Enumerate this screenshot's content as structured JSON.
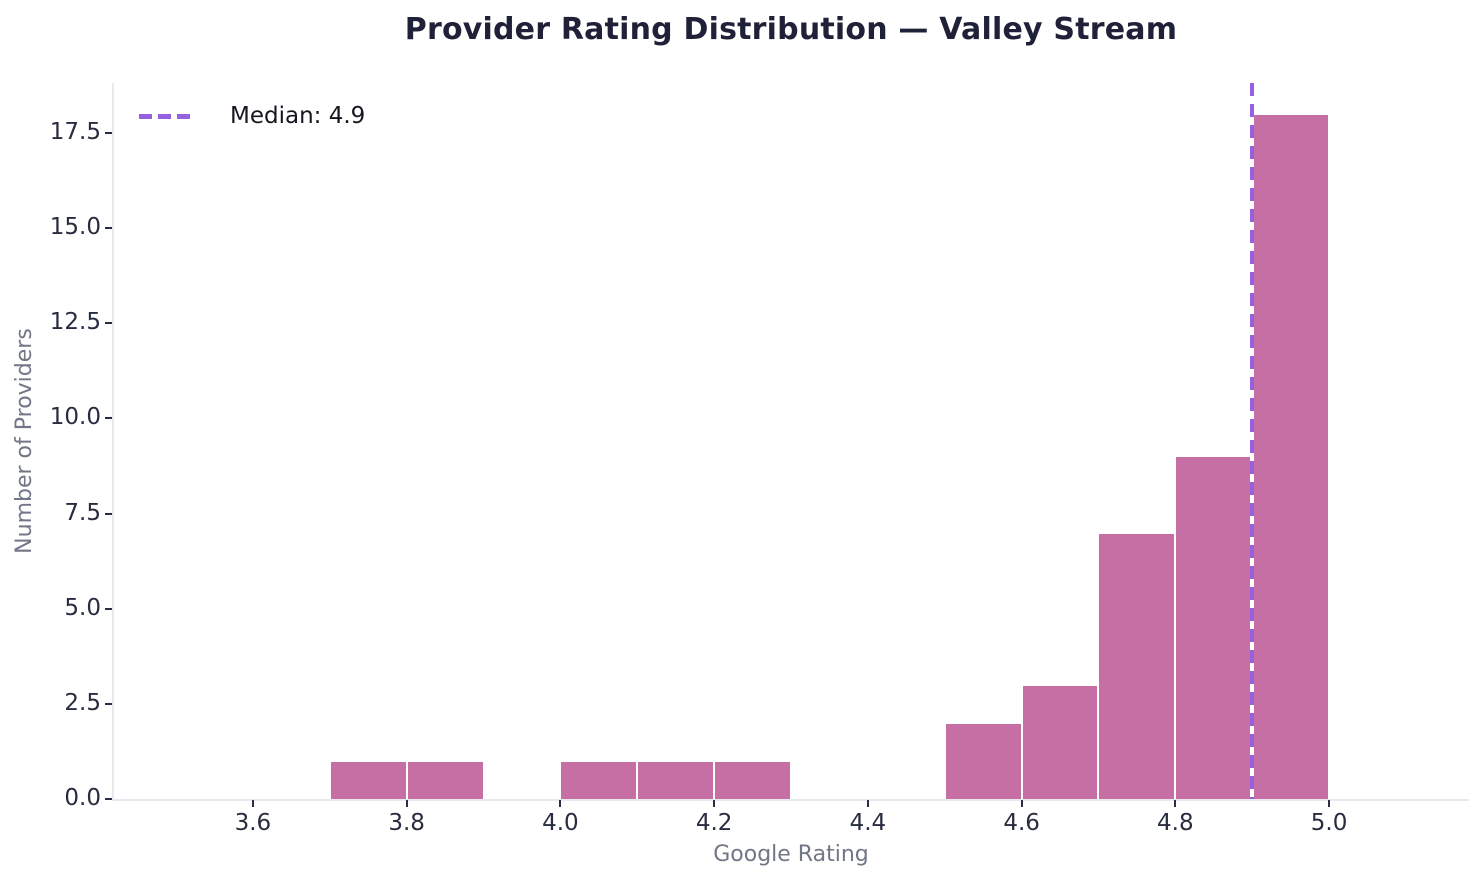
{
  "title": "Provider Rating Distribution — Valley Stream",
  "legend": {
    "label": "Median: 4.9"
  },
  "chart_data": {
    "type": "bar",
    "subtype": "histogram",
    "title": "Provider Rating Distribution — Valley Stream",
    "xlabel": "Google Rating",
    "ylabel": "Number of Providers",
    "bin_width": 0.1,
    "bins": [
      {
        "x0": 3.7,
        "x1": 3.8,
        "count": 1
      },
      {
        "x0": 3.8,
        "x1": 3.9,
        "count": 1
      },
      {
        "x0": 4.0,
        "x1": 4.1,
        "count": 1
      },
      {
        "x0": 4.1,
        "x1": 4.2,
        "count": 1
      },
      {
        "x0": 4.2,
        "x1": 4.3,
        "count": 1
      },
      {
        "x0": 4.5,
        "x1": 4.6,
        "count": 2
      },
      {
        "x0": 4.6,
        "x1": 4.7,
        "count": 3
      },
      {
        "x0": 4.7,
        "x1": 4.8,
        "count": 7
      },
      {
        "x0": 4.8,
        "x1": 4.9,
        "count": 9
      },
      {
        "x0": 4.9,
        "x1": 5.0,
        "count": 18
      }
    ],
    "median": 4.9,
    "x_ticks": [
      {
        "value": 3.6,
        "label": "3.6"
      },
      {
        "value": 3.8,
        "label": "3.8"
      },
      {
        "value": 4.0,
        "label": "4.0"
      },
      {
        "value": 4.2,
        "label": "4.2"
      },
      {
        "value": 4.4,
        "label": "4.4"
      },
      {
        "value": 4.6,
        "label": "4.6"
      },
      {
        "value": 4.8,
        "label": "4.8"
      },
      {
        "value": 5.0,
        "label": "5.0"
      }
    ],
    "y_ticks": [
      {
        "value": 0,
        "label": "0.0"
      },
      {
        "value": 2.5,
        "label": "2.5"
      },
      {
        "value": 5,
        "label": "5.0"
      },
      {
        "value": 7.5,
        "label": "7.5"
      },
      {
        "value": 10,
        "label": "10.0"
      },
      {
        "value": 12.5,
        "label": "12.5"
      },
      {
        "value": 15,
        "label": "15.0"
      },
      {
        "value": 17.5,
        "label": "17.5"
      }
    ],
    "xlim": [
      3.418,
      5.182
    ],
    "ylim": [
      0,
      18.81
    ],
    "grid": false,
    "legend_position": "upper left"
  },
  "colors": {
    "bar": "#c66fa4",
    "bar_edge": "#ffffff",
    "median": "#9760e0",
    "spine": "#e9e9f1",
    "tick": "#2a2e45",
    "tick_label": "#282c3f",
    "axis_label": "#717786",
    "title": "#1e2138",
    "legend_text": "#16161e",
    "background": "#ffffff"
  }
}
